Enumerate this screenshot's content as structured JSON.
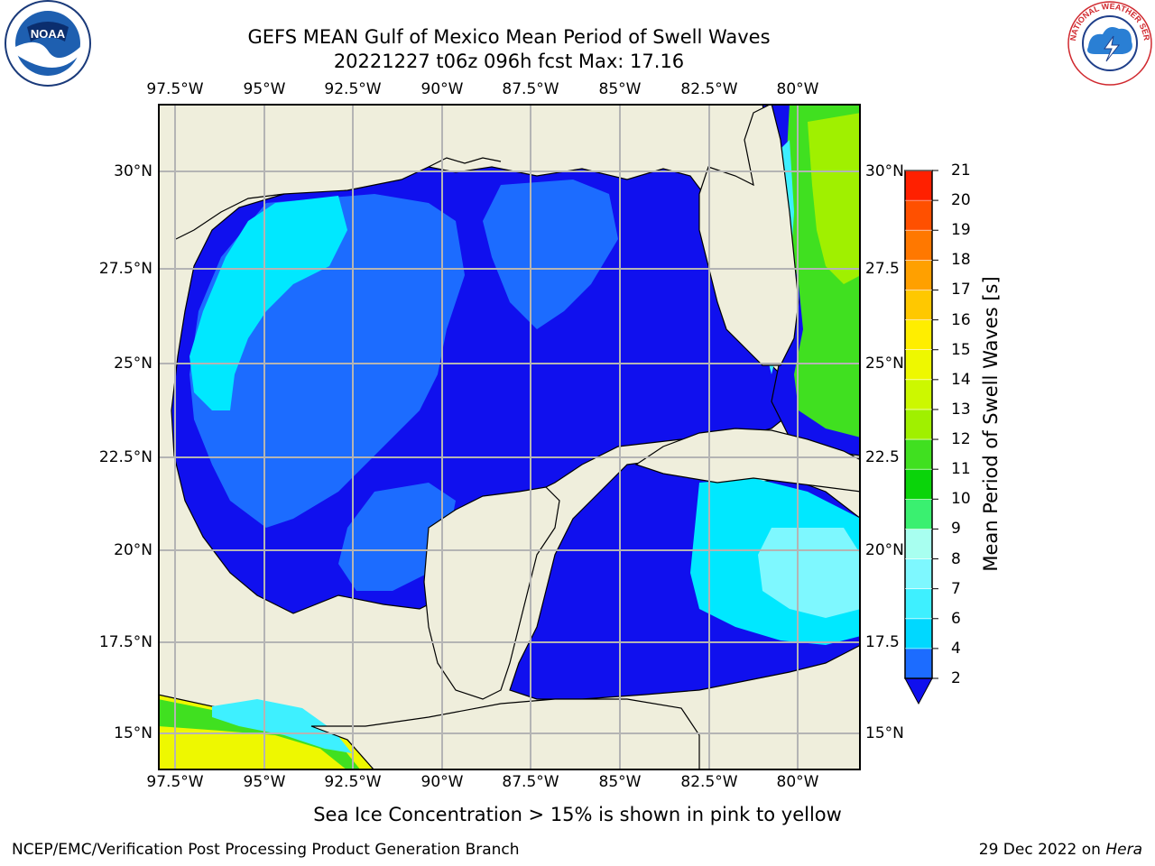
{
  "header": {
    "title_line1": "GEFS MEAN Gulf of Mexico Mean Period of Swell Waves",
    "title_line2": "20221227 t06z 096h fcst   Max: 17.16"
  },
  "logos": {
    "noaa": "NOAA",
    "nws": "NATIONAL WEATHER SERVICE"
  },
  "map": {
    "lon_ticks": [
      "97.5°W",
      "95°W",
      "92.5°W",
      "90°W",
      "87.5°W",
      "85°W",
      "82.5°W",
      "80°W"
    ],
    "lat_ticks": [
      "30°N",
      "27.5°N",
      "25°N",
      "22.5°N",
      "20°N",
      "17.5°N",
      "15°N"
    ],
    "lat_ticks_right": [
      "30°N",
      "27.5",
      "25°N",
      "22.5",
      "20°N",
      "17.5",
      "15°N"
    ],
    "land_color": "#efeedc",
    "ocean_main_color": "#1e2fff"
  },
  "colorbar": {
    "title": "Mean Period of Swell Waves [s]",
    "levels": [
      "2",
      "4",
      "6",
      "7",
      "8",
      "9",
      "10",
      "11",
      "12",
      "13",
      "14",
      "15",
      "16",
      "17",
      "18",
      "19",
      "20",
      "21"
    ],
    "colors": [
      "#1c6cff",
      "#00d8ff",
      "#3ef0ff",
      "#7ef8ff",
      "#a8fff0",
      "#3af070",
      "#0ad40a",
      "#40e020",
      "#a0f000",
      "#ccf800",
      "#eef800",
      "#ffee00",
      "#ffc800",
      "#ffa000",
      "#ff7800",
      "#ff5000",
      "#ff2000"
    ],
    "underflow_color": "#1010ee"
  },
  "footer": {
    "note": "Sea Ice Concentration > 15% is shown in pink to yellow",
    "left": "NCEP/EMC/Verification Post Processing Product Generation Branch",
    "date": "29 Dec 2022 on ",
    "host": "Hera"
  }
}
